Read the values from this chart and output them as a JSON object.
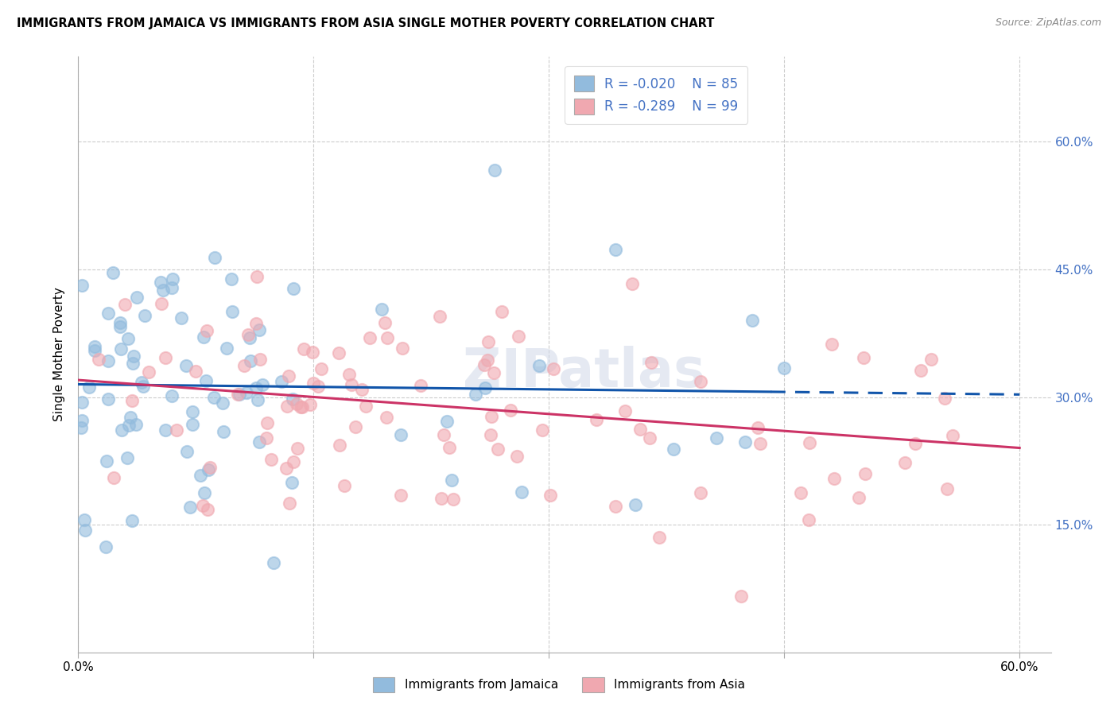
{
  "title": "IMMIGRANTS FROM JAMAICA VS IMMIGRANTS FROM ASIA SINGLE MOTHER POVERTY CORRELATION CHART",
  "source": "Source: ZipAtlas.com",
  "ylabel": "Single Mother Poverty",
  "xlim": [
    0.0,
    0.62
  ],
  "ylim": [
    0.0,
    0.7
  ],
  "legend_blue_R": "R = -0.020",
  "legend_blue_N": "N = 85",
  "legend_pink_R": "R = -0.289",
  "legend_pink_N": "N = 99",
  "legend_blue_label": "Immigrants from Jamaica",
  "legend_pink_label": "Immigrants from Asia",
  "blue_color": "#92bbdd",
  "pink_color": "#f0a8b0",
  "blue_fill": "#aac4e0",
  "pink_fill": "#f4b8be",
  "blue_line_color": "#1155aa",
  "pink_line_color": "#cc3366",
  "blue_regression_slope": -0.02,
  "blue_regression_intercept": 0.315,
  "pink_regression_slope": -0.133,
  "pink_regression_intercept": 0.32,
  "watermark": "ZIPatlas",
  "background_color": "#ffffff",
  "grid_color": "#cccccc",
  "right_tick_color": "#4472c4"
}
